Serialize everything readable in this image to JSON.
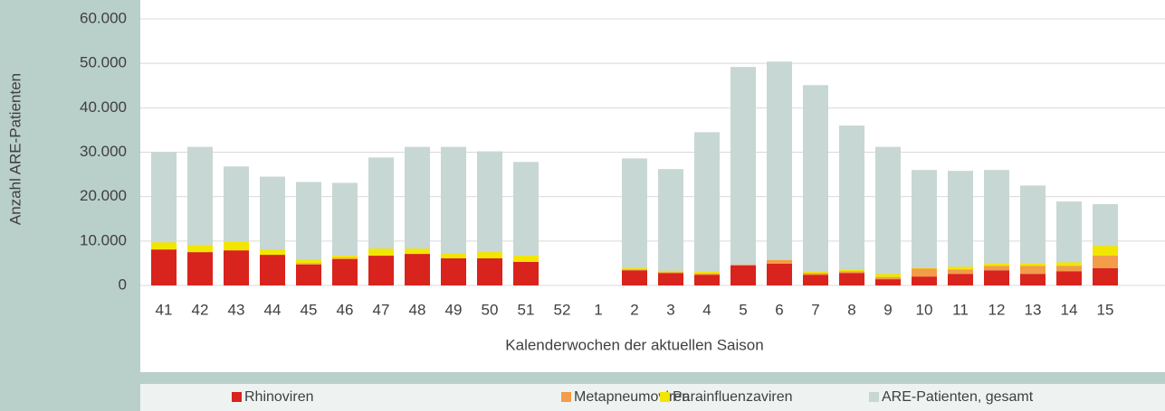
{
  "chart_data": {
    "type": "bar",
    "x_label": "Kalenderwochen der aktuellen Saison",
    "y_label": "Anzahl ARE-Patienten",
    "categories": [
      "41",
      "42",
      "43",
      "44",
      "45",
      "46",
      "47",
      "48",
      "49",
      "50",
      "51",
      "52",
      "1",
      "2",
      "3",
      "4",
      "5",
      "6",
      "7",
      "8",
      "9",
      "10",
      "11",
      "12",
      "13",
      "14",
      "15"
    ],
    "series": [
      {
        "name": "Rhinoviren",
        "color": "#d9231d",
        "values": [
          8100,
          7500,
          7900,
          6900,
          4700,
          5900,
          6700,
          7100,
          6100,
          6100,
          5300,
          null,
          null,
          3400,
          2800,
          2400,
          4500,
          4900,
          2400,
          2800,
          1400,
          2000,
          2600,
          3400,
          2600,
          3200,
          3900
        ]
      },
      {
        "name": "Metapneumoviren",
        "color": "#f39c4a",
        "values": [
          0,
          0,
          0,
          0,
          300,
          300,
          0,
          0,
          0,
          0,
          0,
          null,
          null,
          200,
          200,
          300,
          200,
          800,
          400,
          400,
          500,
          1800,
          1000,
          1000,
          1800,
          1200,
          2800
        ]
      },
      {
        "name": "Parainfluenzaviren",
        "color": "#f2e600",
        "values": [
          1600,
          1600,
          2000,
          1200,
          800,
          500,
          1600,
          1200,
          1000,
          1400,
          1400,
          null,
          null,
          300,
          300,
          400,
          0,
          200,
          300,
          300,
          700,
          200,
          600,
          600,
          600,
          800,
          2200
        ]
      },
      {
        "name": "ARE-Patienten, gesamt",
        "color": "#c7d7d4",
        "values": [
          30000,
          31200,
          26800,
          24500,
          23300,
          23100,
          28800,
          31200,
          31200,
          30200,
          27800,
          null,
          null,
          28600,
          26200,
          34500,
          49200,
          50400,
          45100,
          36000,
          31200,
          26000,
          25800,
          26000,
          22500,
          18900,
          18300
        ]
      }
    ],
    "ylim": [
      0,
      60000
    ],
    "yticks": [
      0,
      {
        "value": 10000,
        "label": "10.000"
      },
      {
        "value": 20000,
        "label": "20.000"
      },
      {
        "value": 30000,
        "label": "30.000"
      },
      {
        "value": 40000,
        "label": "40.000"
      },
      {
        "value": 50000,
        "label": "50.000"
      },
      {
        "value": 60000,
        "label": "60.000"
      }
    ],
    "grid": true
  }
}
